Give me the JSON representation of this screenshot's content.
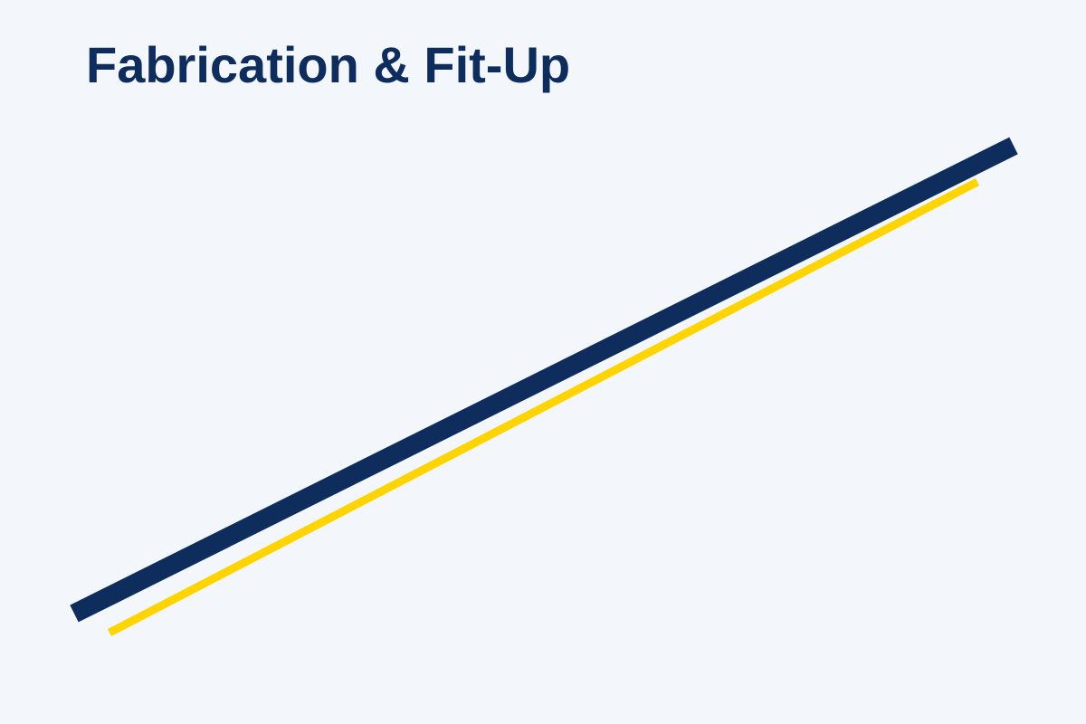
{
  "slide": {
    "title": "Fabrication & Fit-Up"
  },
  "colors": {
    "background": "#f3f7fc",
    "title": "#0e2d5c",
    "primary_stripe": "#0e2d5c",
    "accent_stripe": "#ffd400"
  }
}
